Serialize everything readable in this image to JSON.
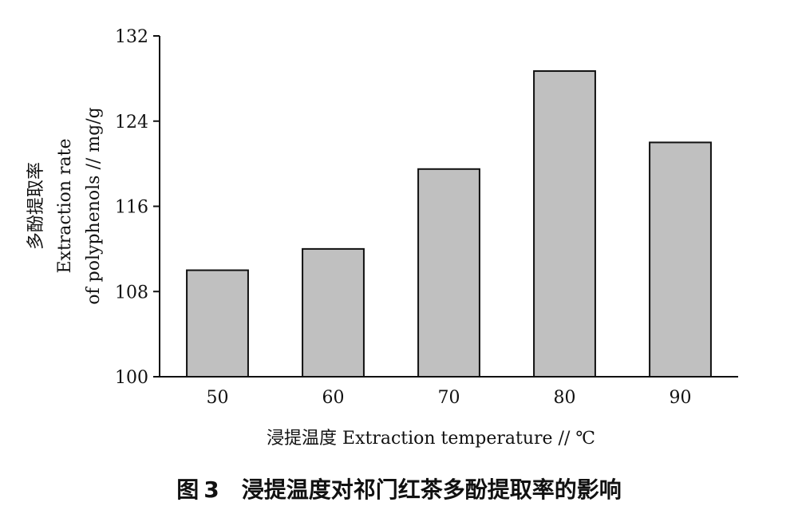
{
  "chart_data": {
    "type": "bar",
    "categories": [
      "50",
      "60",
      "70",
      "80",
      "90"
    ],
    "values": [
      110.0,
      112.0,
      119.5,
      128.7,
      122.0
    ],
    "ylim": [
      100,
      132
    ],
    "yticks": [
      "100",
      "108",
      "116",
      "124",
      "132"
    ],
    "ylabel": [
      "多酚提取率",
      "Extraction rate",
      "of polyphenols // mg/g"
    ],
    "xlabel": "浸提温度 Extraction temperature // ℃",
    "bar_color": "#c0c0c0",
    "grid": false
  },
  "caption": {
    "prefix": "图",
    "number": "3",
    "text": "浸提温度对祁门红茶多酚提取率的影响"
  }
}
